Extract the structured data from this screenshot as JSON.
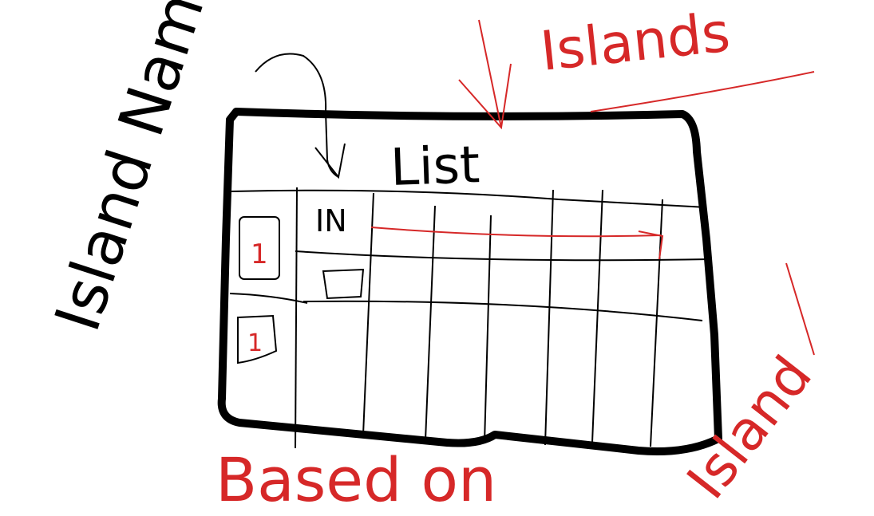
{
  "colors": {
    "ink": "#000000",
    "annotation": "#d62828",
    "background": "#ffffff"
  },
  "labels": {
    "title": "List",
    "left_note": "Island Name",
    "top_right_note": "Islands",
    "bottom_note": "Based on",
    "right_note": "Island",
    "first_cell": "IN"
  },
  "rows": [
    {
      "checkbox_number": "1"
    },
    {
      "checkbox_number": "1"
    }
  ]
}
